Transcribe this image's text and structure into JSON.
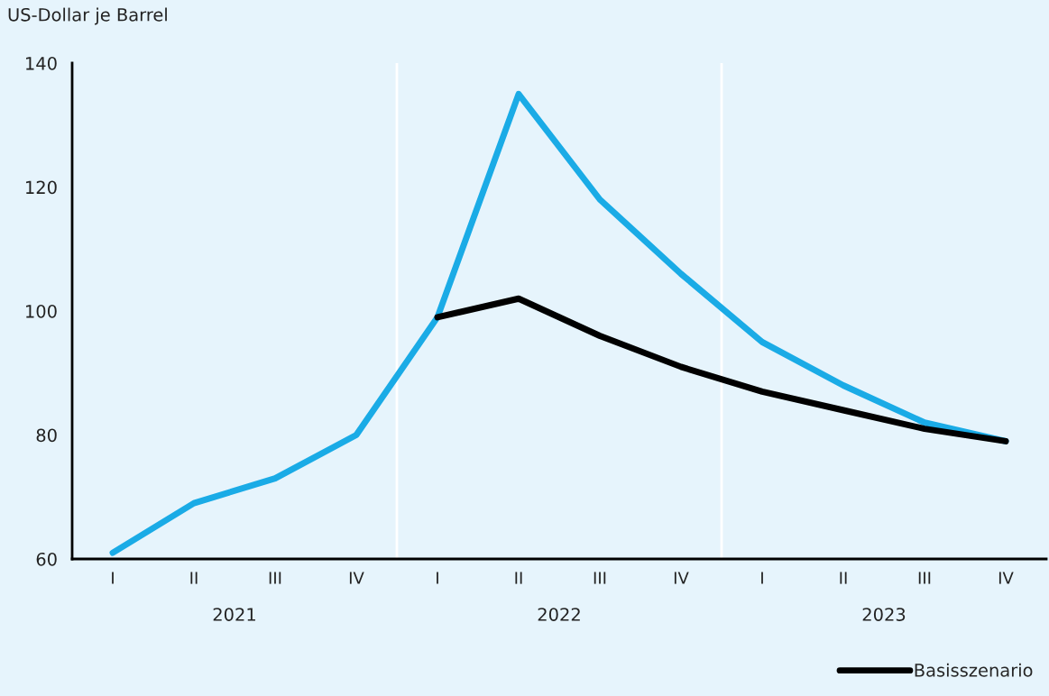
{
  "chart_data": {
    "type": "line",
    "ylabel": "US-Dollar je Barrel",
    "categories": [
      "I",
      "II",
      "III",
      "IV",
      "I",
      "II",
      "III",
      "IV",
      "I",
      "II",
      "III",
      "IV"
    ],
    "series": [
      {
        "color": "#1aabe6",
        "values": [
          61,
          69,
          73,
          80,
          99,
          135,
          118,
          106,
          95,
          88,
          82,
          79
        ]
      },
      {
        "name": "Basisszenario",
        "color": "#000000",
        "values": [
          null,
          null,
          null,
          null,
          99,
          102,
          96,
          91,
          87,
          84,
          81,
          79
        ]
      }
    ],
    "ylim": [
      60,
      140
    ],
    "yticks": [
      60,
      80,
      100,
      120,
      140
    ],
    "annotations": [
      "2021",
      "2022",
      "2023"
    ],
    "grid": false,
    "legend": "bottom right",
    "marker": "none",
    "line_style": "solid"
  }
}
